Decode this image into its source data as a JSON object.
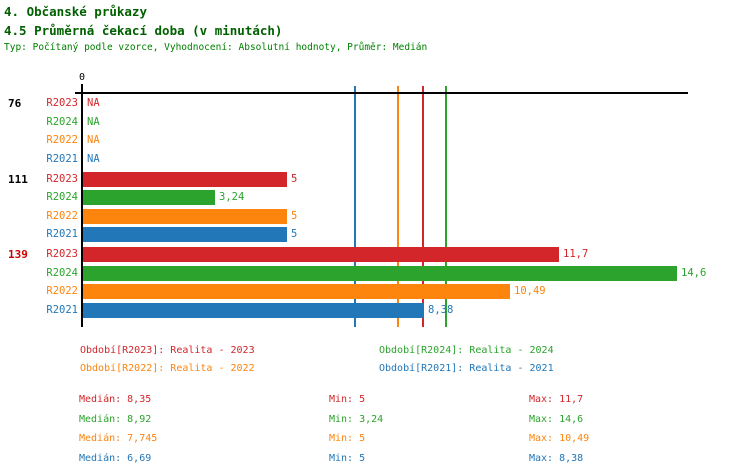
{
  "header": {
    "title_line1": "4. Občanské průkazy",
    "title_line2": "4.5 Průměrná čekací doba (v minutách)",
    "subtitle": "Typ: Počítaný podle vzorce, Vyhodnocení: Absolutní hodnoty, Průměr: Medián"
  },
  "colors": {
    "title": "#006000",
    "subtitle": "#008000",
    "axis": "#000000",
    "group_label": "#000000",
    "group_label_highlight": "#cc0000",
    "series": {
      "R2023": "#d2262a",
      "R2024": "#2ba32c",
      "R2022": "#fd840d",
      "R2021": "#2277b8"
    }
  },
  "chart_data": {
    "type": "bar",
    "orientation": "horizontal",
    "title": "4.5 Průměrná čekací doba (v minutách)",
    "xlabel": "",
    "ylabel": "",
    "axis": {
      "origin_label": "0",
      "min": 0,
      "max": 14.9,
      "grid": false
    },
    "series_order": [
      "R2023",
      "R2024",
      "R2022",
      "R2021"
    ],
    "na_text": "NA",
    "groups": [
      {
        "label": "76",
        "highlight": false,
        "bars": [
          {
            "series": "R2023",
            "value": null,
            "display": "NA"
          },
          {
            "series": "R2024",
            "value": null,
            "display": "NA"
          },
          {
            "series": "R2022",
            "value": null,
            "display": "NA"
          },
          {
            "series": "R2021",
            "value": null,
            "display": "NA"
          }
        ]
      },
      {
        "label": "111",
        "highlight": false,
        "bars": [
          {
            "series": "R2023",
            "value": 5,
            "display": "5"
          },
          {
            "series": "R2024",
            "value": 3.24,
            "display": "3,24"
          },
          {
            "series": "R2022",
            "value": 5,
            "display": "5"
          },
          {
            "series": "R2021",
            "value": 5,
            "display": "5"
          }
        ]
      },
      {
        "label": "139",
        "highlight": true,
        "bars": [
          {
            "series": "R2023",
            "value": 11.7,
            "display": "11,7"
          },
          {
            "series": "R2024",
            "value": 14.6,
            "display": "14,6"
          },
          {
            "series": "R2022",
            "value": 10.49,
            "display": "10,49"
          },
          {
            "series": "R2021",
            "value": 8.38,
            "display": "8,38"
          }
        ]
      }
    ],
    "medians": [
      {
        "series": "R2023",
        "value": 8.35
      },
      {
        "series": "R2024",
        "value": 8.92
      },
      {
        "series": "R2022",
        "value": 7.745
      },
      {
        "series": "R2021",
        "value": 6.69
      }
    ]
  },
  "legend": [
    {
      "series": "R2023",
      "label": "Období[R2023]: Realita - 2023",
      "row": 0,
      "col": 0
    },
    {
      "series": "R2024",
      "label": "Období[R2024]: Realita - 2024",
      "row": 0,
      "col": 1
    },
    {
      "series": "R2022",
      "label": "Období[R2022]: Realita - 2022",
      "row": 1,
      "col": 0
    },
    {
      "series": "R2021",
      "label": "Období[R2021]: Realita - 2021",
      "row": 1,
      "col": 1
    }
  ],
  "stats": [
    {
      "series": "R2023",
      "median": "Medián: 8,35",
      "min": "Min: 5",
      "max": "Max: 11,7"
    },
    {
      "series": "R2024",
      "median": "Medián: 8,92",
      "min": "Min: 3,24",
      "max": "Max: 14,6"
    },
    {
      "series": "R2022",
      "median": "Medián: 7,745",
      "min": "Min: 5",
      "max": "Max: 10,49"
    },
    {
      "series": "R2021",
      "median": "Medián: 6,69",
      "min": "Min: 5",
      "max": "Max: 8,38"
    }
  ]
}
